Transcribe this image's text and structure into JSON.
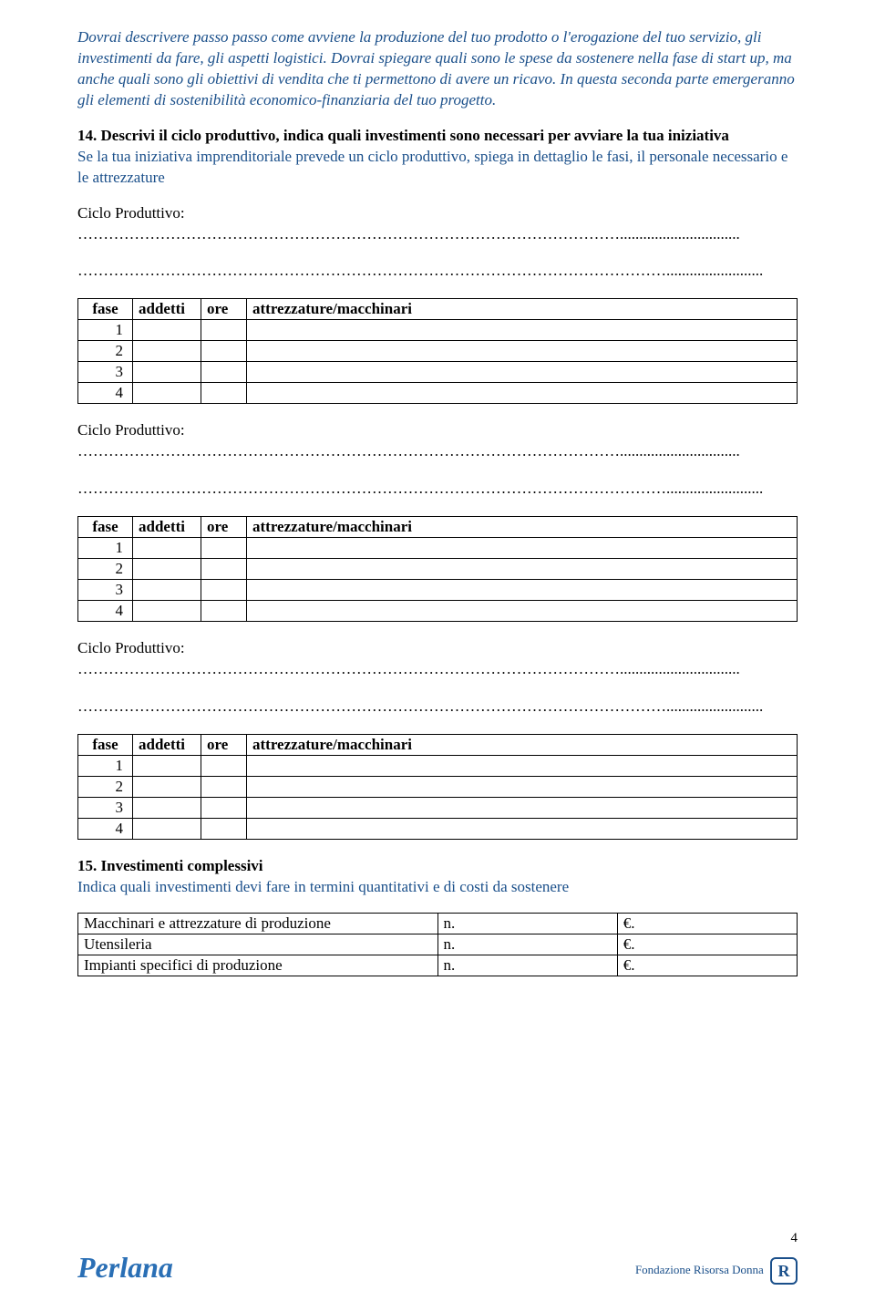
{
  "intro_text": "Dovrai  descrivere passo passo come avviene la produzione del tuo prodotto o l'erogazione del tuo servizio, gli investimenti da fare, gli aspetti logistici.\nDovrai spiegare quali sono le spese da sostenere nella fase di start up, ma anche quali sono gli obiettivi di vendita che ti permettono di avere un ricavo.\nIn questa seconda parte emergeranno gli elementi di sostenibilità economico-finanziaria del tuo progetto.",
  "section14": {
    "title": "14. Descrivi il ciclo produttivo, indica quali investimenti sono necessari per avviare la tua iniziativa",
    "desc": "Se la tua iniziativa imprenditoriale prevede un ciclo produttivo, spiega in dettaglio le fasi, il personale necessario e le attrezzature"
  },
  "ciclo_label": "Ciclo Produttivo:",
  "dots_long": " ……………………………………………………………………………………………...............................",
  "dots_full": "…………………………………………………………………………………………………….........................",
  "phase_table": {
    "headers": {
      "fase": "fase",
      "addetti": "addetti",
      "ore": "ore",
      "attr": "attrezzature/macchinari"
    },
    "rows": [
      "1",
      "2",
      "3",
      "4"
    ]
  },
  "section15": {
    "title": "15. Investimenti complessivi",
    "desc": "Indica quali investimenti devi fare in termini quantitativi e di costi da sostenere"
  },
  "investment_table": {
    "rows": [
      {
        "label": "Macchinari e attrezzature di produzione",
        "n": "n.",
        "euro": "€."
      },
      {
        "label": "Utensileria",
        "n": "n.",
        "euro": "€."
      },
      {
        "label": "Impianti specifici di produzione",
        "n": "n.",
        "euro": "€."
      }
    ]
  },
  "footer": {
    "logo_left": "Perlana",
    "logo_right_text": "Fondazione Risorsa Donna",
    "logo_right_badge": "R",
    "page_number": "4"
  }
}
